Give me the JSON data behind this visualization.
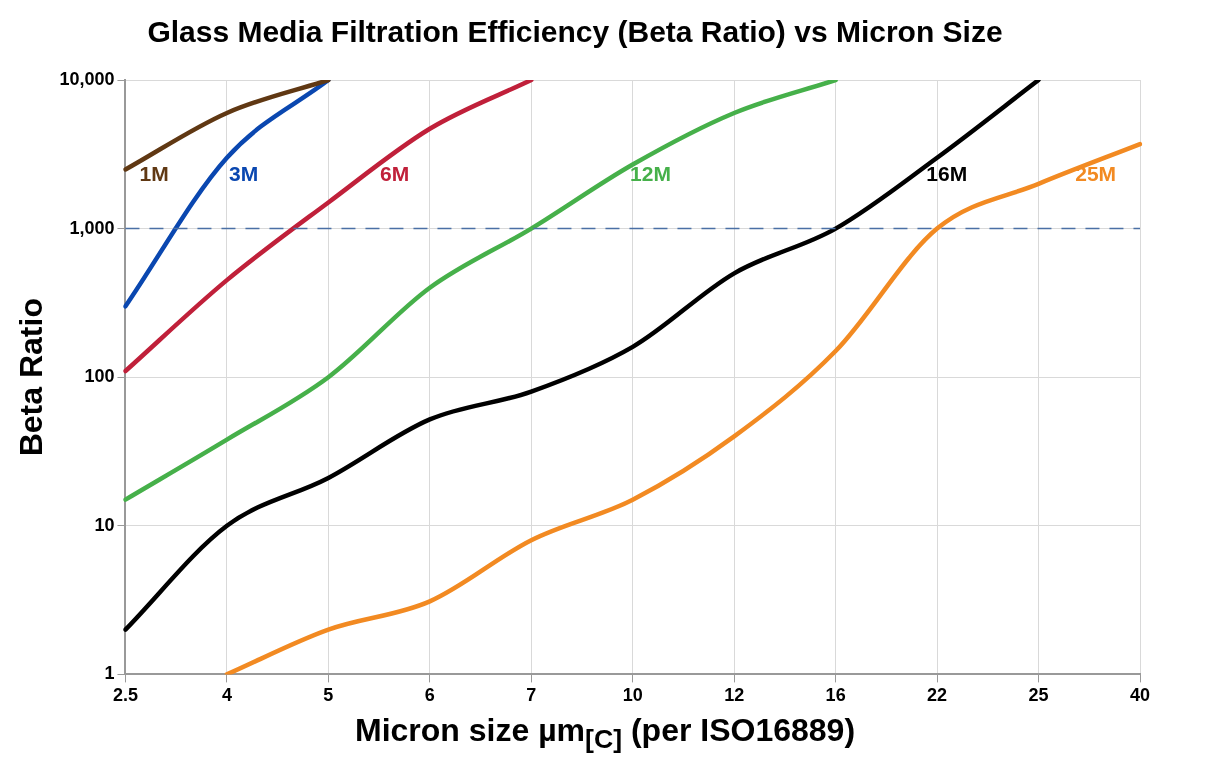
{
  "chart_data": {
    "type": "line",
    "title": "Glass Media Filtration Efficiency (Beta Ratio) vs Micron Size",
    "xlabel": "Micron size µm$_{[C]}$ (per ISO16889)",
    "ylabel": "Beta Ratio",
    "categories": [
      "2.5",
      "4",
      "5",
      "6",
      "7",
      "10",
      "12",
      "16",
      "22",
      "25",
      "40"
    ],
    "series": [
      {
        "name": "1M",
        "color": "#603813",
        "values": [
          2500,
          6000,
          10000,
          null,
          null,
          null,
          null,
          null,
          null,
          null,
          null
        ]
      },
      {
        "name": "3M",
        "color": "#0a47b0",
        "values": [
          300,
          3000,
          10000,
          null,
          null,
          null,
          null,
          null,
          null,
          null,
          null
        ]
      },
      {
        "name": "6M",
        "color": "#c0203a",
        "values": [
          110,
          450,
          1500,
          4700,
          10000,
          null,
          null,
          null,
          null,
          null,
          null
        ]
      },
      {
        "name": "12M",
        "color": "#46b04a",
        "values": [
          15,
          38,
          100,
          400,
          1000,
          2700,
          6000,
          10000,
          null,
          null,
          null
        ]
      },
      {
        "name": "16M",
        "color": "#000000",
        "values": [
          2,
          10,
          21,
          52,
          80,
          160,
          500,
          1000,
          3000,
          10000,
          null
        ]
      },
      {
        "name": "25M",
        "color": "#f28a22",
        "values": [
          null,
          1,
          2,
          3.1,
          8,
          15,
          40,
          150,
          1000,
          2000,
          3700
        ]
      }
    ],
    "log": "y",
    "ylim": [
      1,
      10000
    ],
    "yticks": [
      1,
      10,
      100,
      {
        "value": 1000,
        "label": "1,000"
      },
      {
        "value": 10000,
        "label": "10,000"
      }
    ],
    "grid": true,
    "marker": "none",
    "line_style": "solid",
    "ref_lines": [
      {
        "axis": "y",
        "value": 1000,
        "color": "#4a6fa5",
        "line_style": "dashed"
      }
    ]
  }
}
